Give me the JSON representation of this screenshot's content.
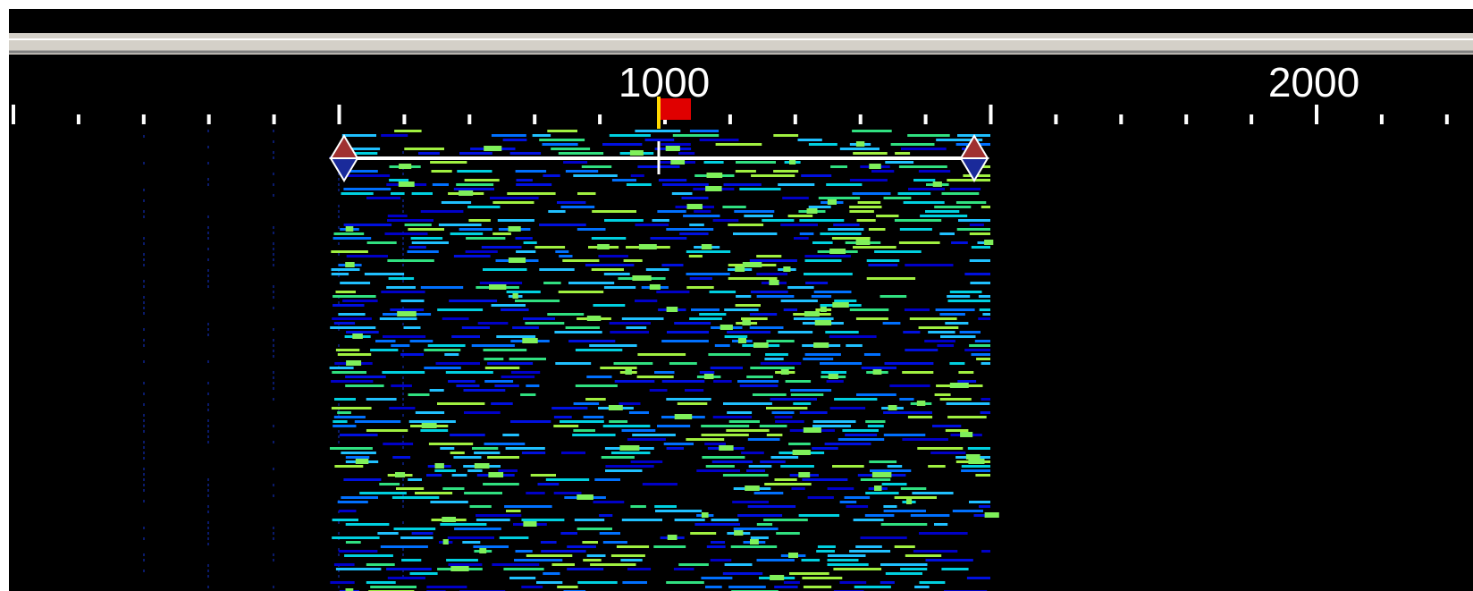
{
  "frequency_scale": {
    "labels": [
      "1000",
      "2000"
    ]
  }
}
